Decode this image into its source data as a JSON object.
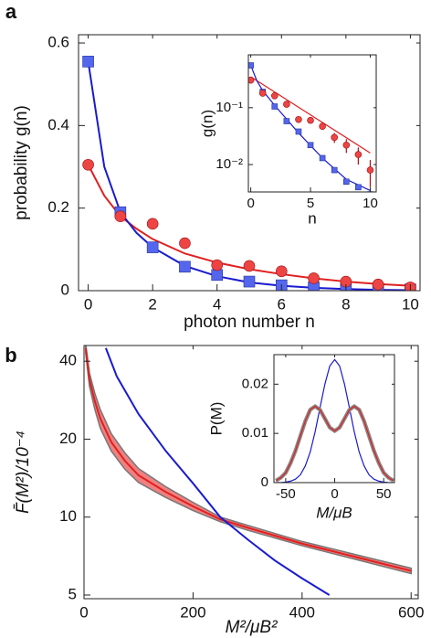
{
  "chart_data": [
    {
      "type": "scatter",
      "panel": "a",
      "xlabel": "photon number n",
      "ylabel": "probability g(n)",
      "xlim": [
        -0.3,
        10.3
      ],
      "ylim": [
        0,
        0.62
      ],
      "xticks": [
        0,
        2,
        4,
        6,
        8,
        10
      ],
      "yticks": [
        0,
        0.2,
        0.4,
        0.6
      ],
      "series": [
        {
          "color": "#e02020",
          "x": [
            0,
            0.5,
            1,
            1.5,
            2,
            3,
            4,
            5,
            6,
            7,
            8,
            9,
            10
          ],
          "values": [
            0.305,
            0.23,
            0.18,
            0.15,
            0.125,
            0.09,
            0.068,
            0.052,
            0.04,
            0.03,
            0.022,
            0.016,
            0.012
          ]
        },
        {
          "color": "#1a1ad0",
          "x": [
            0,
            0.5,
            1,
            1.5,
            2,
            3,
            4,
            5,
            6,
            7,
            8,
            9,
            10
          ],
          "values": [
            0.555,
            0.3,
            0.19,
            0.14,
            0.105,
            0.06,
            0.035,
            0.02,
            0.012,
            0.007,
            0.004,
            0.002,
            0.001
          ]
        },
        {
          "color": "#5566ee",
          "marker": "square",
          "x": [
            0,
            1,
            2,
            3,
            4,
            5,
            6,
            7,
            8,
            9,
            10
          ],
          "values": [
            0.555,
            0.19,
            0.105,
            0.058,
            0.038,
            0.022,
            0.013,
            0.008,
            0.005,
            0.004,
            0.003
          ]
        },
        {
          "color": "#ee4444",
          "marker": "circle",
          "x": [
            0,
            1,
            2,
            3,
            4,
            5,
            6,
            7,
            8,
            9,
            10
          ],
          "values": [
            0.305,
            0.18,
            0.162,
            0.115,
            0.062,
            0.06,
            0.047,
            0.03,
            0.022,
            0.015,
            0.008
          ],
          "errors": [
            0.008,
            0.01,
            0.01,
            0.008,
            0.006,
            0.006,
            0.005,
            0.005,
            0.004,
            0.004,
            0.003
          ]
        }
      ]
    },
    {
      "type": "scatter",
      "xlabel": "n",
      "ylabel": "g(n)",
      "ylog": true,
      "xlim": [
        -0.2,
        10.5
      ],
      "ylim": [
        0.0033,
        0.85
      ],
      "xticks": [
        0,
        5,
        10
      ],
      "yticks": [
        {
          "value": 0.1,
          "label": "10⁻¹"
        },
        {
          "value": 0.01,
          "label": "10⁻²"
        }
      ],
      "series": [
        {
          "color": "#e02020",
          "x": [
            0,
            10
          ],
          "values": [
            0.35,
            0.016
          ]
        },
        {
          "color": "#1a1ad0",
          "x": [
            0,
            0.5,
            1,
            2,
            4,
            6,
            8,
            10
          ],
          "values": [
            0.555,
            0.3,
            0.2,
            0.11,
            0.036,
            0.013,
            0.0055,
            0.0035
          ]
        },
        {
          "color": "#5566ee",
          "marker": "square",
          "x": [
            0,
            1,
            2,
            3,
            4,
            5,
            6,
            7,
            8,
            9,
            10
          ],
          "values": [
            0.555,
            0.19,
            0.105,
            0.058,
            0.038,
            0.022,
            0.013,
            0.008,
            0.005,
            0.004,
            0.003
          ]
        },
        {
          "color": "#ee4444",
          "marker": "circle",
          "x": [
            0,
            1,
            2,
            3,
            4,
            5,
            6,
            7,
            8,
            9,
            10
          ],
          "values": [
            0.305,
            0.18,
            0.162,
            0.115,
            0.062,
            0.06,
            0.047,
            0.03,
            0.022,
            0.015,
            0.008
          ],
          "errors": [
            0.01,
            0.01,
            0.01,
            0.008,
            0.006,
            0.006,
            0.006,
            0.006,
            0.006,
            0.005,
            0.004
          ]
        }
      ]
    },
    {
      "type": "line",
      "panel": "b",
      "xlabel": "M²/μB²",
      "ylabel": "F̄(M²)/10⁻⁴",
      "ylog": true,
      "xlim": [
        0,
        613
      ],
      "ylim": [
        4.84,
        46
      ],
      "xticks": [
        0,
        200,
        400,
        600
      ],
      "yticks": [
        5,
        10,
        20,
        40
      ],
      "series": [
        {
          "color": "#e02020",
          "band_color": "#f08080",
          "band_edge": "#777777",
          "x": [
            3,
            10,
            20,
            30,
            50,
            75,
            100,
            150,
            200,
            250,
            300,
            400,
            500,
            600
          ],
          "values": [
            45,
            34,
            28,
            24,
            19.5,
            16.5,
            14.5,
            12.5,
            11,
            9.8,
            9.1,
            7.9,
            7,
            6.2
          ],
          "band_lower": [
            43,
            32,
            26,
            22,
            18,
            15.3,
            13.6,
            11.9,
            10.6,
            9.6,
            8.9,
            7.75,
            6.85,
            6.05
          ],
          "band_upper": [
            47,
            36,
            30,
            26,
            21,
            17.7,
            15.4,
            13.1,
            11.4,
            10,
            9.3,
            8.05,
            7.15,
            6.35
          ]
        },
        {
          "color": "#1a1ad0",
          "x": [
            40,
            60,
            100,
            150,
            200,
            250,
            300,
            350,
            400,
            450
          ],
          "values": [
            45,
            35,
            25,
            18,
            13.5,
            10,
            8.2,
            6.8,
            5.8,
            5
          ]
        }
      ]
    },
    {
      "type": "line",
      "xlabel": "M/μB",
      "ylabel": "P(M)",
      "xlim": [
        -62,
        61
      ],
      "ylim": [
        0,
        0.026
      ],
      "xticks": [
        -50,
        0,
        50
      ],
      "yticks": [
        0,
        0.01,
        0.02
      ],
      "series": [
        {
          "color": "#1a1ad0",
          "x": [
            -60,
            -55,
            -50,
            -45,
            -40,
            -35,
            -30,
            -25,
            -20,
            -15,
            -10,
            -5,
            0,
            5,
            10,
            15,
            20,
            25,
            30,
            35,
            40,
            45,
            50,
            55,
            60
          ],
          "values": [
            0,
            0,
            0.0001,
            0.0003,
            0.0007,
            0.0016,
            0.0034,
            0.0062,
            0.0103,
            0.0152,
            0.02,
            0.0237,
            0.025,
            0.0237,
            0.02,
            0.0152,
            0.0103,
            0.0062,
            0.0034,
            0.0016,
            0.0007,
            0.0003,
            0.0001,
            0,
            0
          ]
        },
        {
          "color": "#e02020",
          "outline": "#888888",
          "x": [
            -60,
            -55,
            -50,
            -45,
            -40,
            -35,
            -30,
            -25,
            -20,
            -15,
            -10,
            -5,
            0,
            5,
            10,
            15,
            20,
            25,
            30,
            35,
            40,
            45,
            50,
            55,
            60
          ],
          "values": [
            0.0004,
            0.001,
            0.002,
            0.004,
            0.0065,
            0.0095,
            0.0125,
            0.0148,
            0.0155,
            0.0148,
            0.013,
            0.0112,
            0.0105,
            0.0112,
            0.013,
            0.0148,
            0.0155,
            0.0148,
            0.0125,
            0.0095,
            0.0065,
            0.004,
            0.002,
            0.001,
            0.0004
          ]
        }
      ]
    }
  ]
}
